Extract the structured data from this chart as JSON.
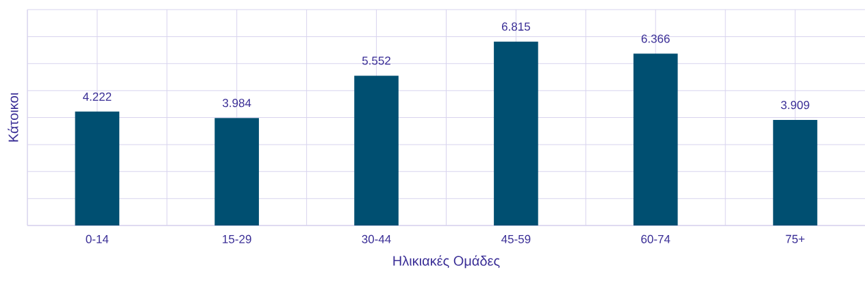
{
  "chart_data": {
    "type": "bar",
    "xlabel": "Ηλικιακές Ομάδες",
    "ylabel": "Κάτοικοι",
    "categories": [
      "0-14",
      "15-29",
      "30-44",
      "45-59",
      "60-74",
      "75+"
    ],
    "values": [
      4222,
      3984,
      5552,
      6815,
      6366,
      3909
    ],
    "value_labels": [
      "4.222",
      "3.984",
      "5.552",
      "6.815",
      "6.366",
      "3.909"
    ],
    "color": "#004f71",
    "ylim": [
      0,
      8000
    ],
    "yticks": [
      {
        "value": 0,
        "label": null
      },
      {
        "value": 1000,
        "label": null
      },
      {
        "value": 2000,
        "label": null
      },
      {
        "value": 3000,
        "label": null
      },
      {
        "value": 4000,
        "label": null
      },
      {
        "value": 5000,
        "label": null
      },
      {
        "value": 6000,
        "label": null
      },
      {
        "value": 7000,
        "label": null
      },
      {
        "value": 8000,
        "label": null
      }
    ],
    "tick_labels": "x",
    "grid": true
  }
}
